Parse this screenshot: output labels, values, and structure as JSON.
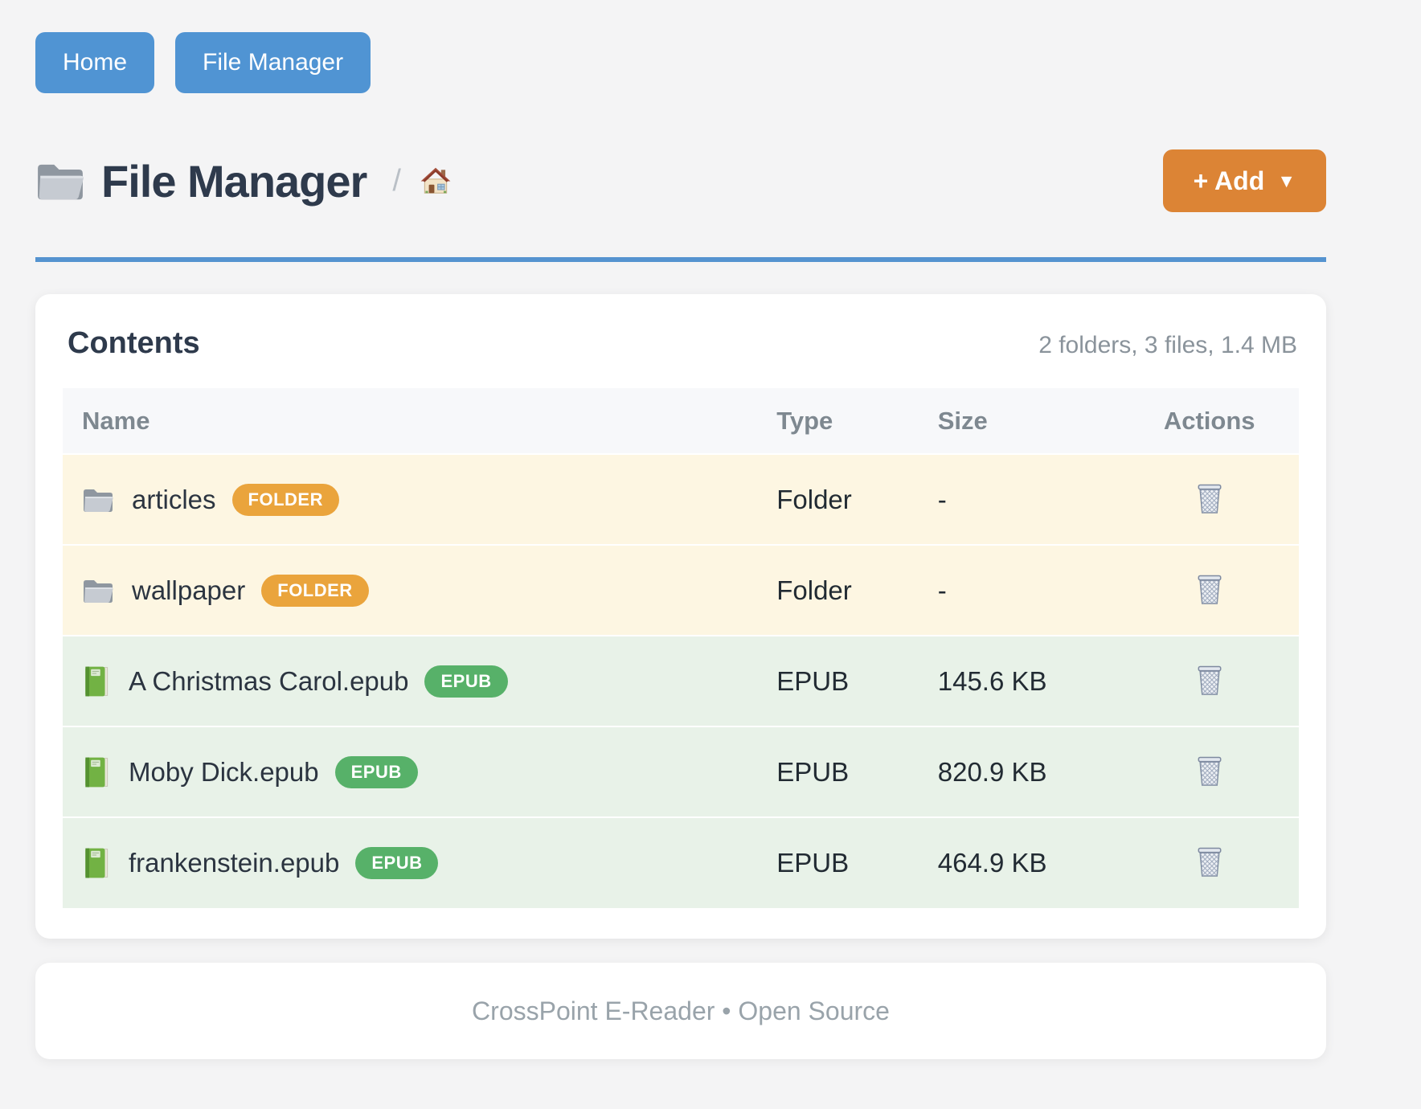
{
  "nav": {
    "buttons": [
      {
        "label": "Home"
      },
      {
        "label": "File Manager"
      }
    ]
  },
  "header": {
    "title": "File Manager",
    "breadcrumb_separator": "/",
    "add_button_label": "+ Add",
    "add_button_caret": "▼"
  },
  "contents_card": {
    "title": "Contents",
    "summary": "2 folders, 3 files, 1.4 MB",
    "table": {
      "columns": [
        "Name",
        "Type",
        "Size",
        "Actions"
      ],
      "rows": [
        {
          "name": "articles",
          "badge": "FOLDER",
          "type": "Folder",
          "size": "-",
          "kind": "folder"
        },
        {
          "name": "wallpaper",
          "badge": "FOLDER",
          "type": "Folder",
          "size": "-",
          "kind": "folder"
        },
        {
          "name": "A Christmas Carol.epub",
          "badge": "EPUB",
          "type": "EPUB",
          "size": "145.6 KB",
          "kind": "epub"
        },
        {
          "name": "Moby Dick.epub",
          "badge": "EPUB",
          "type": "EPUB",
          "size": "820.9 KB",
          "kind": "epub"
        },
        {
          "name": "frankenstein.epub",
          "badge": "EPUB",
          "type": "EPUB",
          "size": "464.9 KB",
          "kind": "epub"
        }
      ]
    }
  },
  "footer": {
    "text": "CrossPoint E-Reader • Open Source"
  },
  "colors": {
    "page_background": "#f4f4f5",
    "nav_button_blue": "#5094d3",
    "title_rule_blue": "#5593d0",
    "add_button_orange": "#dc8435",
    "folder_badge_orange": "#eaa43c",
    "epub_badge_green": "#57b169",
    "folder_row_background": "#fdf6e2",
    "epub_row_background": "#e8f2e8",
    "table_header_background": "#f7f8fa"
  }
}
